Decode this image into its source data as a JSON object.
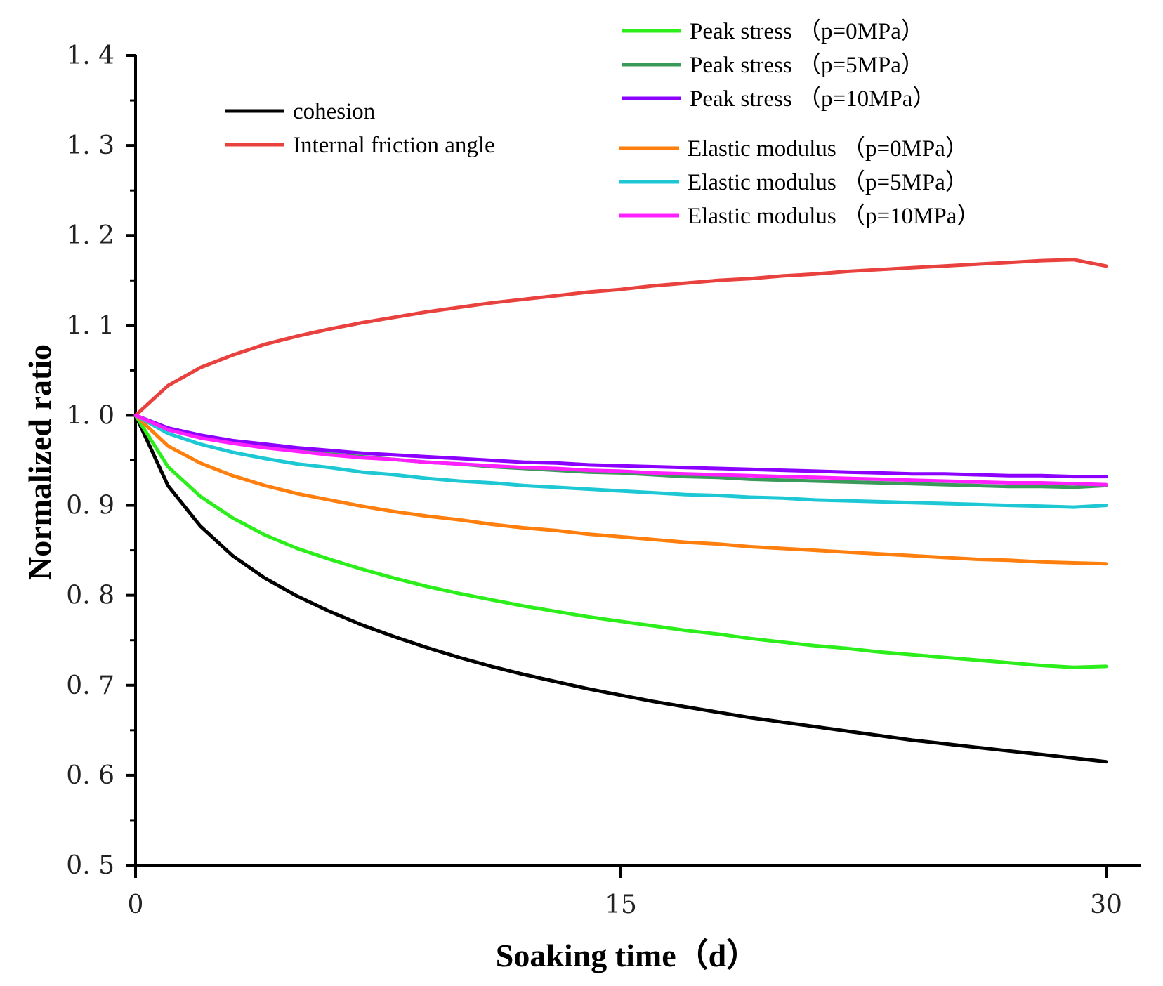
{
  "chart_data": {
    "type": "line",
    "xlabel": "Soaking time（d）",
    "ylabel": "Normalized ratio",
    "xlim": [
      0,
      30
    ],
    "ylim": [
      0.5,
      1.4
    ],
    "x_ticks": [
      0,
      15,
      30
    ],
    "x_tick_labels": [
      "0",
      "15",
      "30"
    ],
    "y_ticks": [
      0.5,
      0.6,
      0.7,
      0.8,
      0.9,
      1.0,
      1.1,
      1.2,
      1.3,
      1.4
    ],
    "y_tick_labels": [
      "0. 5",
      "0. 6",
      "0. 7",
      "0. 8",
      "0. 9",
      "1. 0",
      "1. 1",
      "1. 2",
      "1. 3",
      "1. 4"
    ],
    "grid": false,
    "x": [
      0,
      1,
      2,
      3,
      4,
      5,
      6,
      7,
      8,
      9,
      10,
      11,
      12,
      13,
      14,
      15,
      16,
      17,
      18,
      19,
      20,
      21,
      22,
      23,
      24,
      25,
      26,
      27,
      28,
      29,
      30
    ],
    "series": [
      {
        "name": "cohesion",
        "color": "#000000",
        "group": "left",
        "values": [
          1.0,
          0.922,
          0.877,
          0.844,
          0.819,
          0.799,
          0.782,
          0.767,
          0.754,
          0.742,
          0.731,
          0.721,
          0.712,
          0.704,
          0.696,
          0.689,
          0.682,
          0.676,
          0.67,
          0.664,
          0.659,
          0.654,
          0.649,
          0.644,
          0.639,
          0.635,
          0.631,
          0.627,
          0.623,
          0.619,
          0.615
        ]
      },
      {
        "name": "Internal friction angle",
        "color": "#e8413e",
        "group": "left",
        "values": [
          1.0,
          1.033,
          1.053,
          1.067,
          1.079,
          1.088,
          1.096,
          1.103,
          1.109,
          1.115,
          1.12,
          1.125,
          1.129,
          1.133,
          1.137,
          1.14,
          1.144,
          1.147,
          1.15,
          1.152,
          1.155,
          1.157,
          1.16,
          1.162,
          1.164,
          1.166,
          1.168,
          1.17,
          1.172,
          1.173,
          1.166
        ]
      },
      {
        "name": "Peak stress （p=0MPa）",
        "color": "#2bee1b",
        "group": "right1",
        "values": [
          1.0,
          0.943,
          0.91,
          0.886,
          0.867,
          0.852,
          0.84,
          0.829,
          0.819,
          0.81,
          0.802,
          0.795,
          0.788,
          0.782,
          0.776,
          0.771,
          0.766,
          0.761,
          0.757,
          0.752,
          0.748,
          0.744,
          0.741,
          0.737,
          0.734,
          0.731,
          0.728,
          0.725,
          0.722,
          0.72,
          0.721
        ]
      },
      {
        "name": "Peak stress （p=5MPa）",
        "color": "#3a9a5a",
        "group": "right1",
        "values": [
          1.0,
          0.986,
          0.977,
          0.97,
          0.965,
          0.961,
          0.957,
          0.954,
          0.951,
          0.948,
          0.946,
          0.943,
          0.941,
          0.939,
          0.937,
          0.936,
          0.934,
          0.932,
          0.931,
          0.929,
          0.928,
          0.927,
          0.926,
          0.925,
          0.924,
          0.923,
          0.922,
          0.921,
          0.921,
          0.92,
          0.922
        ]
      },
      {
        "name": "Peak stress （p=10MPa）",
        "color": "#8b00ff",
        "group": "right1",
        "values": [
          1.0,
          0.986,
          0.978,
          0.972,
          0.968,
          0.964,
          0.961,
          0.958,
          0.956,
          0.954,
          0.952,
          0.95,
          0.948,
          0.947,
          0.945,
          0.944,
          0.943,
          0.942,
          0.941,
          0.94,
          0.939,
          0.938,
          0.937,
          0.936,
          0.935,
          0.935,
          0.934,
          0.933,
          0.933,
          0.932,
          0.932
        ]
      },
      {
        "name": "Elastic modulus （p=0MPa）",
        "color": "#ff7f0e",
        "group": "right2",
        "values": [
          1.0,
          0.966,
          0.947,
          0.933,
          0.922,
          0.913,
          0.906,
          0.899,
          0.893,
          0.888,
          0.884,
          0.879,
          0.875,
          0.872,
          0.868,
          0.865,
          0.862,
          0.859,
          0.857,
          0.854,
          0.852,
          0.85,
          0.848,
          0.846,
          0.844,
          0.842,
          0.84,
          0.839,
          0.837,
          0.836,
          0.835
        ]
      },
      {
        "name": "Elastic modulus （p=5MPa）",
        "color": "#1dc8d4",
        "group": "right2",
        "values": [
          1.0,
          0.98,
          0.968,
          0.959,
          0.952,
          0.946,
          0.942,
          0.937,
          0.934,
          0.93,
          0.927,
          0.925,
          0.922,
          0.92,
          0.918,
          0.916,
          0.914,
          0.912,
          0.911,
          0.909,
          0.908,
          0.906,
          0.905,
          0.904,
          0.903,
          0.902,
          0.901,
          0.9,
          0.899,
          0.898,
          0.9
        ]
      },
      {
        "name": "Elastic modulus （p=10MPa）",
        "color": "#ff1fff",
        "group": "right2",
        "values": [
          1.0,
          0.984,
          0.975,
          0.969,
          0.964,
          0.96,
          0.956,
          0.953,
          0.951,
          0.948,
          0.946,
          0.944,
          0.942,
          0.941,
          0.939,
          0.938,
          0.936,
          0.935,
          0.934,
          0.933,
          0.932,
          0.931,
          0.93,
          0.929,
          0.928,
          0.927,
          0.926,
          0.925,
          0.925,
          0.924,
          0.923
        ]
      }
    ]
  }
}
